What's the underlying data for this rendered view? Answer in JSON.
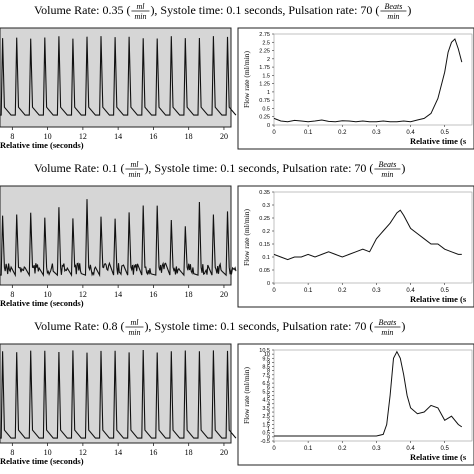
{
  "rows": [
    {
      "caption": {
        "pre": "Volume Rate: 0.35",
        "unit_num": "ml",
        "unit_den": "min",
        "mid": ", Systole time: 0.1 seconds, Pulsation rate: 70",
        "rate_num": "Beats",
        "rate_den": "min"
      },
      "signal": {
        "xlabel": "Relative time (seconds)",
        "xticks": [
          8,
          10,
          12,
          14,
          16,
          18,
          20
        ],
        "xlim": [
          7.3,
          20.4
        ],
        "beats": 17,
        "peak": 0.92,
        "base": 0.12,
        "noise": 0.0
      },
      "flow": {
        "ylabel": "Flow rate (ml/min)",
        "xlabel": "Relative time (s",
        "yticks": [
          "0",
          "0.25",
          "0.5",
          "0.75",
          "1",
          "1.25",
          "1.5",
          "1.75",
          "2",
          "2.25",
          "2.5",
          "2.75"
        ],
        "ylim": [
          0,
          2.75
        ],
        "xticks": [
          "0",
          "0.1",
          "0.2",
          "0.3",
          "0.4",
          "0.5"
        ]
      }
    },
    {
      "caption": {
        "pre": "Volume Rate: 0.1",
        "unit_num": "ml",
        "unit_den": "min",
        "mid": ", Systole time: 0.1 seconds, Pulsation rate: 70",
        "rate_num": "Beats",
        "rate_den": "min"
      },
      "signal": {
        "xlabel": "Relative time (seconds)",
        "xticks": [
          8,
          10,
          12,
          14,
          16,
          18,
          20
        ],
        "xlim": [
          7.3,
          20.4
        ],
        "beats": 17,
        "peak": 0.82,
        "base": 0.1,
        "noise": 0.04
      },
      "flow": {
        "ylabel": "Flow rate (ml/min)",
        "xlabel": "Relative time (s",
        "yticks": [
          "0",
          "0.05",
          "0.1",
          "0.15",
          "0.2",
          "0.25",
          "0.3",
          "0.35"
        ],
        "ylim": [
          0,
          0.35
        ],
        "xticks": [
          "0",
          "0.1",
          "0.2",
          "0.3",
          "0.4",
          "0.5"
        ]
      }
    },
    {
      "caption": {
        "pre": "Volume Rate: 0.8",
        "unit_num": "ml",
        "unit_den": "min",
        "mid": ", Systole time: 0.1 seconds, Pulsation rate: 70",
        "rate_num": "Beats",
        "rate_den": "min"
      },
      "signal": {
        "xlabel": "Relative time (seconds)",
        "xticks": [
          8,
          10,
          12,
          14,
          16,
          18,
          20
        ],
        "xlim": [
          7.3,
          20.4
        ],
        "beats": 17,
        "peak": 0.94,
        "base": 0.05,
        "noise": 0.0
      },
      "flow": {
        "ylabel": "Flow rate (ml/min)",
        "xlabel": "Relative time (s",
        "yticks": [
          "-0.5",
          "0",
          "0.5",
          "1",
          "1.5",
          "2",
          "2.5",
          "3",
          "3.5",
          "4",
          "4.5",
          "5",
          "5.5",
          "6",
          "6.5",
          "7",
          "7.5",
          "8",
          "8.5",
          "9",
          "9.5",
          "10",
          "10.5"
        ],
        "ylim": [
          -0.5,
          10.5
        ],
        "xticks": [
          "0",
          "0.1",
          "0.2",
          "0.3",
          "0.4",
          "0.5"
        ]
      }
    }
  ],
  "chart_data": [
    {
      "type": "line",
      "title": "",
      "xlabel": "Relative time (s",
      "ylabel": "Flow rate (ml/min)",
      "ylim": [
        0,
        2.75
      ],
      "x": [
        0,
        0.02,
        0.04,
        0.06,
        0.08,
        0.1,
        0.12,
        0.14,
        0.16,
        0.18,
        0.2,
        0.22,
        0.24,
        0.26,
        0.28,
        0.3,
        0.32,
        0.34,
        0.36,
        0.38,
        0.4,
        0.42,
        0.44,
        0.46,
        0.48,
        0.5,
        0.51,
        0.52,
        0.53,
        0.54,
        0.55
      ],
      "y": [
        0.2,
        0.12,
        0.1,
        0.14,
        0.12,
        0.1,
        0.12,
        0.15,
        0.11,
        0.1,
        0.13,
        0.12,
        0.1,
        0.12,
        0.1,
        0.1,
        0.12,
        0.1,
        0.1,
        0.12,
        0.1,
        0.15,
        0.2,
        0.35,
        0.8,
        1.6,
        2.2,
        2.5,
        2.6,
        2.3,
        1.9
      ]
    },
    {
      "type": "line",
      "title": "",
      "xlabel": "Relative time (s",
      "ylabel": "Flow rate (ml/min)",
      "ylim": [
        0,
        0.35
      ],
      "x": [
        0,
        0.02,
        0.04,
        0.06,
        0.08,
        0.1,
        0.12,
        0.14,
        0.16,
        0.18,
        0.2,
        0.22,
        0.24,
        0.26,
        0.28,
        0.3,
        0.32,
        0.34,
        0.35,
        0.36,
        0.37,
        0.38,
        0.4,
        0.42,
        0.44,
        0.46,
        0.48,
        0.5,
        0.52,
        0.54,
        0.55
      ],
      "y": [
        0.11,
        0.1,
        0.09,
        0.1,
        0.1,
        0.11,
        0.1,
        0.11,
        0.12,
        0.11,
        0.1,
        0.11,
        0.12,
        0.13,
        0.12,
        0.17,
        0.2,
        0.23,
        0.25,
        0.27,
        0.28,
        0.26,
        0.21,
        0.19,
        0.17,
        0.15,
        0.15,
        0.13,
        0.12,
        0.11,
        0.11
      ]
    },
    {
      "type": "line",
      "title": "",
      "xlabel": "Relative time (s",
      "ylabel": "Flow rate (ml/min)",
      "ylim": [
        -0.5,
        10.5
      ],
      "x": [
        0,
        0.05,
        0.1,
        0.15,
        0.2,
        0.25,
        0.3,
        0.32,
        0.33,
        0.34,
        0.35,
        0.36,
        0.37,
        0.38,
        0.39,
        0.4,
        0.42,
        0.44,
        0.46,
        0.48,
        0.5,
        0.52,
        0.54,
        0.55
      ],
      "y": [
        0.1,
        0.1,
        0.1,
        0.1,
        0.1,
        0.1,
        0.1,
        0.3,
        1.5,
        5,
        9.5,
        10.3,
        9.5,
        7.5,
        5,
        3.5,
        2.8,
        3,
        3.8,
        3.5,
        2,
        2.5,
        1.5,
        1.2
      ]
    }
  ]
}
